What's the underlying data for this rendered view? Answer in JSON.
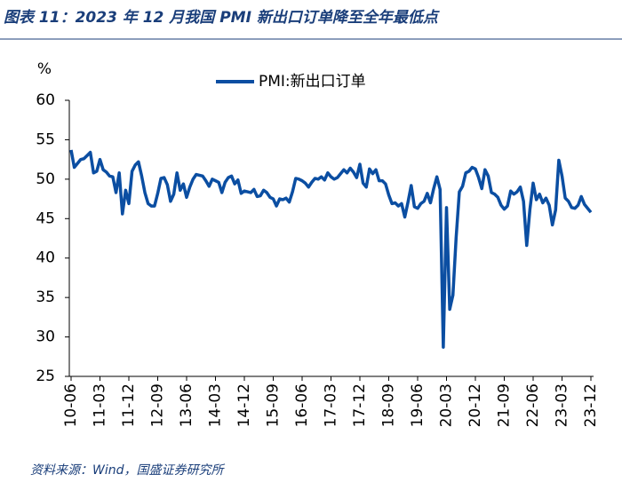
{
  "chart_data": {
    "type": "line",
    "title": "图表 11：2023 年 12 月我国 PMI 新出口订单降至全年最低点",
    "y_unit": "%",
    "source": "资料来源：Wind，国盛证券研究所",
    "categories": [
      "10-06",
      null,
      null,
      null,
      null,
      null,
      null,
      null,
      null,
      "11-03",
      null,
      null,
      null,
      null,
      null,
      null,
      null,
      null,
      "11-12",
      null,
      null,
      null,
      null,
      null,
      null,
      null,
      null,
      "12-09",
      null,
      null,
      null,
      null,
      null,
      null,
      null,
      null,
      "13-06",
      null,
      null,
      null,
      null,
      null,
      null,
      null,
      null,
      "14-03",
      null,
      null,
      null,
      null,
      null,
      null,
      null,
      null,
      "14-12",
      null,
      null,
      null,
      null,
      null,
      null,
      null,
      null,
      "15-09",
      null,
      null,
      null,
      null,
      null,
      null,
      null,
      null,
      "16-06",
      null,
      null,
      null,
      null,
      null,
      null,
      null,
      null,
      "17-03",
      null,
      null,
      null,
      null,
      null,
      null,
      null,
      null,
      "17-12",
      null,
      null,
      null,
      null,
      null,
      null,
      null,
      null,
      "18-09",
      null,
      null,
      null,
      null,
      null,
      null,
      null,
      null,
      "19-06",
      null,
      null,
      null,
      null,
      null,
      null,
      null,
      null,
      "20-03",
      null,
      null,
      null,
      null,
      null,
      null,
      null,
      null,
      "20-12",
      null,
      null,
      null,
      null,
      null,
      null,
      null,
      null,
      "21-09",
      null,
      null,
      null,
      null,
      null,
      null,
      null,
      null,
      "22-06",
      null,
      null,
      null,
      null,
      null,
      null,
      null,
      null,
      "23-03",
      null,
      null,
      null,
      null,
      null,
      null,
      null,
      null,
      "23-12"
    ],
    "series": [
      {
        "name": "PMI:新出口订单",
        "color": "#0b4ea2",
        "values": [
          53.7,
          51.5,
          52.0,
          52.5,
          52.6,
          53.0,
          53.4,
          50.8,
          51.0,
          52.5,
          51.2,
          50.9,
          50.4,
          50.3,
          48.3,
          50.8,
          45.6,
          48.6,
          46.9,
          51.0,
          51.8,
          52.2,
          50.4,
          48.3,
          46.9,
          46.6,
          46.6,
          48.2,
          50.1,
          50.2,
          49.3,
          47.2,
          48.1,
          50.8,
          48.6,
          49.4,
          47.7,
          49.0,
          50.0,
          50.6,
          50.5,
          50.4,
          49.8,
          49.1,
          50.0,
          49.8,
          49.6,
          48.3,
          49.6,
          50.2,
          50.4,
          49.4,
          49.9,
          48.2,
          48.5,
          48.4,
          48.3,
          48.7,
          47.8,
          47.9,
          48.6,
          48.3,
          47.7,
          47.5,
          46.6,
          47.5,
          47.4,
          47.6,
          47.1,
          48.4,
          50.1,
          50.0,
          49.8,
          49.5,
          49.0,
          49.6,
          50.1,
          50.0,
          50.3,
          49.9,
          50.8,
          50.3,
          50.0,
          50.2,
          50.7,
          51.2,
          50.8,
          51.4,
          50.9,
          50.2,
          51.9,
          49.5,
          49.0,
          51.3,
          50.7,
          51.2,
          49.8,
          49.8,
          49.4,
          48.0,
          46.9,
          47.0,
          46.6,
          46.9,
          45.2,
          47.1,
          49.2,
          46.5,
          46.3,
          46.9,
          47.2,
          48.2,
          47.0,
          48.8,
          50.3,
          48.7,
          28.7,
          46.4,
          33.5,
          35.3,
          42.6,
          48.4,
          49.1,
          50.8,
          51.0,
          51.5,
          51.3,
          50.2,
          48.8,
          51.2,
          50.4,
          48.3,
          48.1,
          47.7,
          46.7,
          46.2,
          46.6,
          48.5,
          48.1,
          48.4,
          49.0,
          47.2,
          41.6,
          46.2,
          49.5,
          47.4,
          48.1,
          47.0,
          47.6,
          46.7,
          44.2,
          46.1,
          52.4,
          50.4,
          47.6,
          47.2,
          46.4,
          46.3,
          46.7,
          47.8,
          46.8,
          46.3,
          45.8
        ]
      }
    ],
    "ylim": [
      25,
      60
    ],
    "yticks": [
      25,
      30,
      35,
      40,
      45,
      50,
      55,
      60
    ],
    "legend": "top",
    "grid": false
  }
}
